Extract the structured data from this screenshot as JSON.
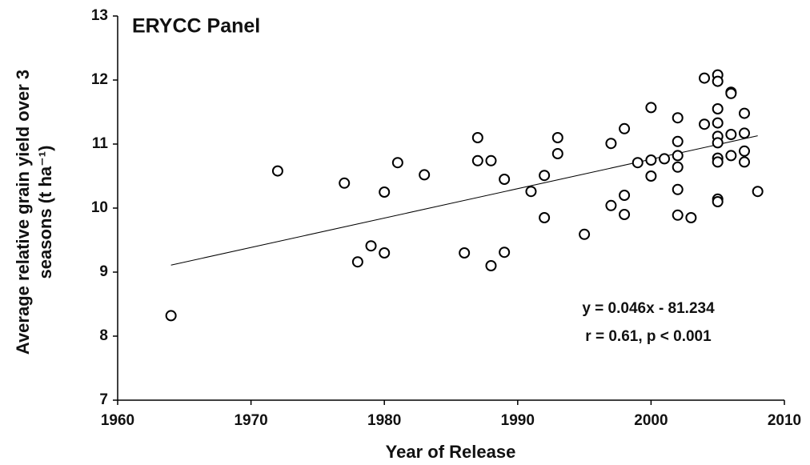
{
  "chart_data": {
    "type": "scatter",
    "title": "ERYCC Panel",
    "xlabel": "Year of Release",
    "ylabel": [
      "Average relative grain yield over 3",
      "seasons (t ha⁻¹)"
    ],
    "annotations": [
      "y = 0.046x - 81.234",
      "r = 0.61, p < 0.001"
    ],
    "xlim": [
      1960,
      2010
    ],
    "xticks": [
      1960,
      1970,
      1980,
      1990,
      2000,
      2010
    ],
    "ylim": [
      7,
      13
    ],
    "yticks": [
      7,
      8,
      9,
      10,
      11,
      12,
      13
    ],
    "marker_color": "#000000",
    "trendline_color": "#000000",
    "x": [
      1964,
      1972,
      1977,
      1978,
      1979,
      1980,
      1980,
      1981,
      1983,
      1986,
      1987,
      1987,
      1988,
      1988,
      1989,
      1989,
      1991,
      1992,
      1992,
      1993,
      1993,
      1995,
      1997,
      1997,
      1998,
      1998,
      1998,
      1999,
      2000,
      2000,
      2000,
      2001,
      2002,
      2002,
      2002,
      2002,
      2002,
      2002,
      2003,
      2004,
      2004,
      2005,
      2005,
      2005,
      2005,
      2005,
      2005,
      2005,
      2005,
      2005,
      2005,
      2006,
      2006,
      2006,
      2006,
      2007,
      2007,
      2007,
      2007,
      2008
    ],
    "y": [
      8.32,
      10.58,
      10.39,
      9.16,
      9.41,
      10.25,
      9.3,
      10.71,
      10.52,
      9.3,
      11.1,
      10.74,
      10.74,
      9.1,
      10.45,
      9.31,
      10.26,
      10.51,
      9.85,
      11.1,
      10.85,
      9.59,
      11.01,
      10.04,
      11.24,
      10.2,
      9.9,
      10.71,
      11.57,
      10.75,
      10.5,
      10.77,
      11.41,
      11.04,
      10.82,
      10.64,
      10.29,
      9.89,
      9.85,
      12.03,
      11.31,
      12.08,
      11.98,
      11.55,
      11.33,
      11.12,
      11.02,
      10.78,
      10.72,
      10.14,
      10.1,
      11.81,
      11.79,
      11.15,
      10.82,
      11.48,
      11.17,
      10.89,
      10.72,
      10.26
    ],
    "trendline": {
      "x": [
        1964,
        2008
      ],
      "y": [
        9.11,
        11.13
      ]
    }
  }
}
